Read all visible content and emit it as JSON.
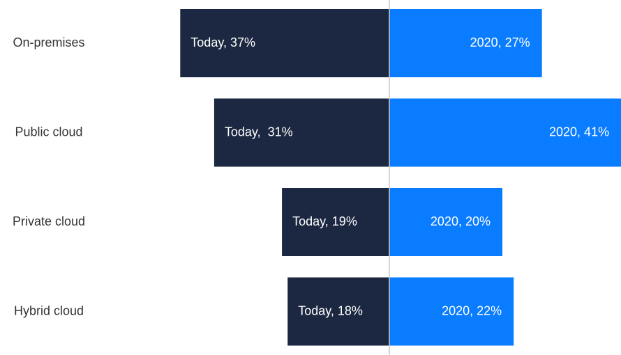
{
  "chart_data": {
    "type": "bar",
    "orientation": "diverging",
    "categories": [
      "On-premises",
      "Public cloud",
      "Private cloud",
      "Hybrid cloud"
    ],
    "series": [
      {
        "color": "#1c2841",
        "values": [
          37,
          31,
          19,
          18
        ],
        "value_labels": [
          "Today, 37%",
          "Today,  31%",
          "Today, 19%",
          "Today, 18%"
        ]
      },
      {
        "color": "#0a7cff",
        "values": [
          27,
          41,
          20,
          22
        ],
        "value_labels": [
          "2020, 27%",
          "2020, 41%",
          "2020, 20%",
          "2020, 22%"
        ]
      }
    ]
  }
}
